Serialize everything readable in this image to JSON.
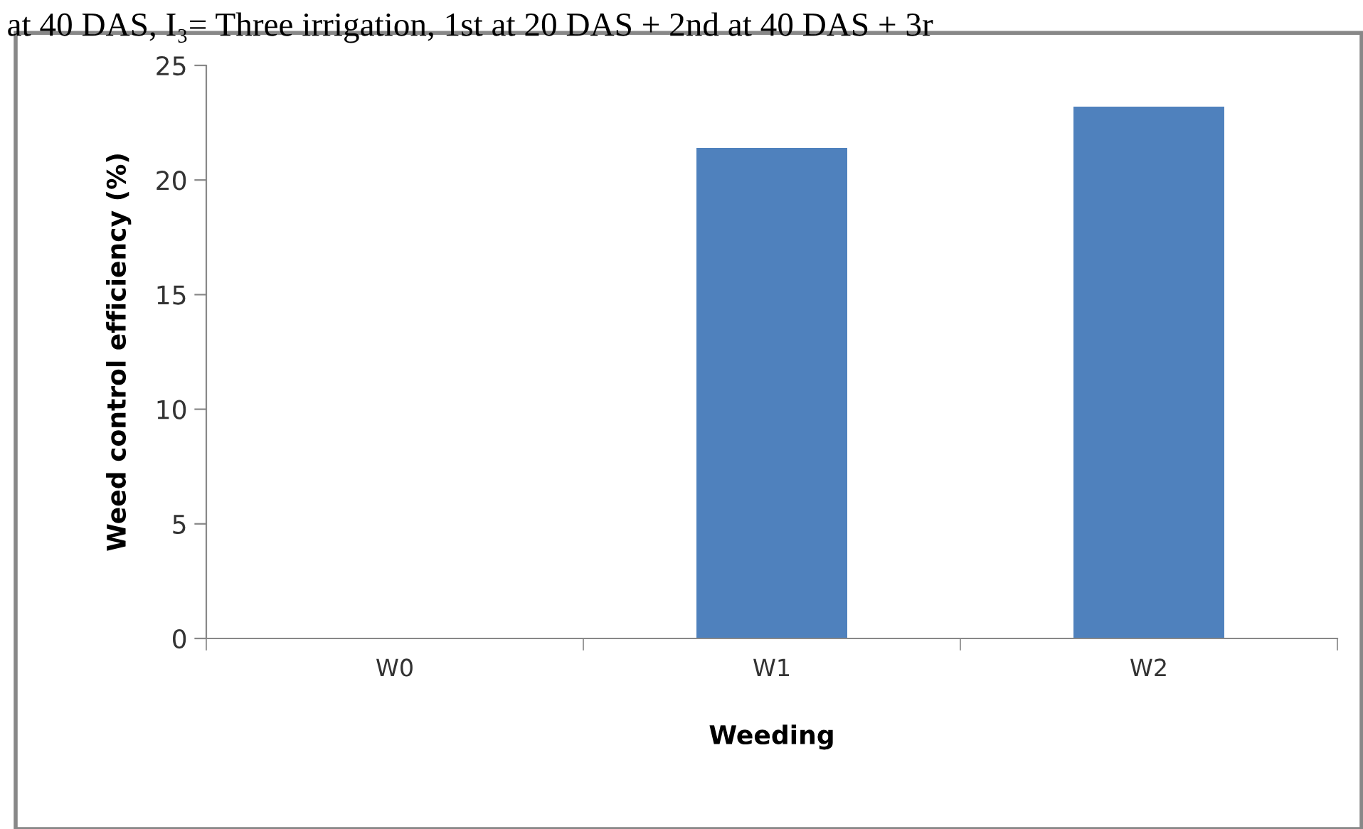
{
  "chart_data": {
    "type": "bar",
    "xlabel": "Weeding",
    "ylabel": "Weed control efficiency (%)",
    "annotations": [
      "at 40 DAS, I₃= Three irrigation, 1st at 20 DAS + 2nd at 40 DAS + 3r"
    ],
    "categories": [
      "W0",
      "W1",
      "W2"
    ],
    "values": [
      0,
      21.4,
      23.2
    ],
    "color": "#4f81bd",
    "ylim": [
      0,
      25
    ],
    "yticks": [
      0,
      5,
      10,
      15,
      20,
      25
    ],
    "grid": false,
    "legend": false
  }
}
